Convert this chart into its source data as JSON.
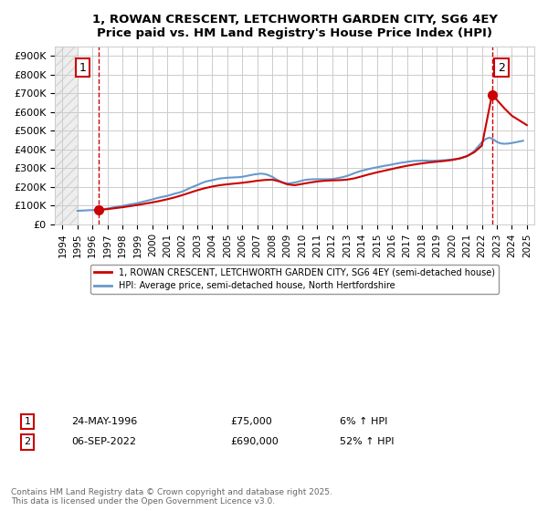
{
  "title": "1, ROWAN CRESCENT, LETCHWORTH GARDEN CITY, SG6 4EY",
  "subtitle": "Price paid vs. HM Land Registry's House Price Index (HPI)",
  "legend_line1": "1, ROWAN CRESCENT, LETCHWORTH GARDEN CITY, SG6 4EY (semi-detached house)",
  "legend_line2": "HPI: Average price, semi-detached house, North Hertfordshire",
  "footer": "Contains HM Land Registry data © Crown copyright and database right 2025.\nThis data is licensed under the Open Government Licence v3.0.",
  "annotation1": {
    "label": "1",
    "date": "24-MAY-1996",
    "price": "£75,000",
    "hpi": "6% ↑ HPI"
  },
  "annotation2": {
    "label": "2",
    "date": "06-SEP-2022",
    "price": "£690,000",
    "hpi": "52% ↑ HPI"
  },
  "ylim": [
    0,
    950000
  ],
  "xlim_start": 1993.5,
  "xlim_end": 2025.5,
  "yticks": [
    0,
    100000,
    200000,
    300000,
    400000,
    500000,
    600000,
    700000,
    800000,
    900000
  ],
  "ytick_labels": [
    "£0",
    "£100K",
    "£200K",
    "£300K",
    "£400K",
    "£500K",
    "£600K",
    "£700K",
    "£800K",
    "£900K"
  ],
  "xticks": [
    1994,
    1995,
    1996,
    1997,
    1998,
    1999,
    2000,
    2001,
    2002,
    2003,
    2004,
    2005,
    2006,
    2007,
    2008,
    2009,
    2010,
    2011,
    2012,
    2013,
    2014,
    2015,
    2016,
    2017,
    2018,
    2019,
    2020,
    2021,
    2022,
    2023,
    2024,
    2025
  ],
  "red_line_color": "#cc0000",
  "blue_line_color": "#6699cc",
  "dashed_vline_color": "#cc0000",
  "grid_color": "#cccccc",
  "purchase1_x": 1996.39,
  "purchase1_y": 75000,
  "purchase2_x": 2022.67,
  "purchase2_y": 690000,
  "hpi_data_x": [
    1995.0,
    1995.25,
    1995.5,
    1995.75,
    1996.0,
    1996.25,
    1996.5,
    1996.75,
    1997.0,
    1997.25,
    1997.5,
    1997.75,
    1998.0,
    1998.25,
    1998.5,
    1998.75,
    1999.0,
    1999.25,
    1999.5,
    1999.75,
    2000.0,
    2000.25,
    2000.5,
    2000.75,
    2001.0,
    2001.25,
    2001.5,
    2001.75,
    2002.0,
    2002.25,
    2002.5,
    2002.75,
    2003.0,
    2003.25,
    2003.5,
    2003.75,
    2004.0,
    2004.25,
    2004.5,
    2004.75,
    2005.0,
    2005.25,
    2005.5,
    2005.75,
    2006.0,
    2006.25,
    2006.5,
    2006.75,
    2007.0,
    2007.25,
    2007.5,
    2007.75,
    2008.0,
    2008.25,
    2008.5,
    2008.75,
    2009.0,
    2009.25,
    2009.5,
    2009.75,
    2010.0,
    2010.25,
    2010.5,
    2010.75,
    2011.0,
    2011.25,
    2011.5,
    2011.75,
    2012.0,
    2012.25,
    2012.5,
    2012.75,
    2013.0,
    2013.25,
    2013.5,
    2013.75,
    2014.0,
    2014.25,
    2014.5,
    2014.75,
    2015.0,
    2015.25,
    2015.5,
    2015.75,
    2016.0,
    2016.25,
    2016.5,
    2016.75,
    2017.0,
    2017.25,
    2017.5,
    2017.75,
    2018.0,
    2018.25,
    2018.5,
    2018.75,
    2019.0,
    2019.25,
    2019.5,
    2019.75,
    2020.0,
    2020.25,
    2020.5,
    2020.75,
    2021.0,
    2021.25,
    2021.5,
    2021.75,
    2022.0,
    2022.25,
    2022.5,
    2022.75,
    2023.0,
    2023.25,
    2023.5,
    2023.75,
    2024.0,
    2024.25,
    2024.5,
    2024.75
  ],
  "hpi_data_y": [
    71000,
    72000,
    73000,
    74000,
    75000,
    76000,
    78000,
    80000,
    83000,
    87000,
    91000,
    94000,
    97000,
    101000,
    105000,
    108000,
    112000,
    117000,
    122000,
    127000,
    132000,
    138000,
    143000,
    147000,
    151000,
    157000,
    163000,
    168000,
    174000,
    183000,
    193000,
    201000,
    209000,
    218000,
    226000,
    231000,
    235000,
    240000,
    244000,
    246000,
    248000,
    249000,
    250000,
    251000,
    253000,
    257000,
    261000,
    265000,
    268000,
    270000,
    268000,
    262000,
    253000,
    241000,
    230000,
    221000,
    218000,
    219000,
    222000,
    227000,
    233000,
    237000,
    239000,
    240000,
    240000,
    240000,
    240000,
    240000,
    241000,
    244000,
    248000,
    252000,
    258000,
    265000,
    273000,
    280000,
    286000,
    291000,
    296000,
    300000,
    304000,
    308000,
    312000,
    315000,
    319000,
    323000,
    327000,
    330000,
    333000,
    336000,
    338000,
    339000,
    340000,
    340000,
    339000,
    339000,
    340000,
    341000,
    342000,
    344000,
    346000,
    348000,
    351000,
    356000,
    363000,
    375000,
    392000,
    415000,
    438000,
    455000,
    463000,
    454000,
    440000,
    432000,
    430000,
    431000,
    434000,
    438000,
    442000,
    446000
  ],
  "price_line_x": [
    1996.39,
    1996.5,
    1997.0,
    1997.5,
    1998.0,
    1998.5,
    1999.0,
    1999.5,
    2000.0,
    2000.5,
    2001.0,
    2001.5,
    2002.0,
    2002.5,
    2003.0,
    2003.5,
    2004.0,
    2004.5,
    2005.0,
    2005.5,
    2006.0,
    2006.5,
    2007.0,
    2007.5,
    2008.0,
    2008.5,
    2009.0,
    2009.5,
    2010.0,
    2010.5,
    2011.0,
    2011.5,
    2012.0,
    2012.5,
    2013.0,
    2013.5,
    2014.0,
    2014.5,
    2015.0,
    2015.5,
    2016.0,
    2016.5,
    2017.0,
    2017.5,
    2018.0,
    2018.5,
    2019.0,
    2019.5,
    2020.0,
    2020.5,
    2021.0,
    2021.5,
    2022.0,
    2022.67,
    2022.75,
    2023.0,
    2023.5,
    2024.0,
    2024.5,
    2025.0
  ],
  "price_line_y": [
    75000,
    75800,
    80000,
    85000,
    90000,
    96000,
    102000,
    109000,
    116000,
    124000,
    133000,
    143000,
    155000,
    168000,
    181000,
    192000,
    201000,
    208000,
    213000,
    217000,
    221000,
    226000,
    232000,
    236000,
    238000,
    228000,
    213000,
    208000,
    215000,
    222000,
    228000,
    232000,
    234000,
    235000,
    238000,
    245000,
    256000,
    267000,
    277000,
    286000,
    295000,
    304000,
    312000,
    319000,
    325000,
    330000,
    334000,
    338000,
    343000,
    351000,
    364000,
    385000,
    420000,
    690000,
    685000,
    665000,
    620000,
    580000,
    555000,
    530000
  ]
}
